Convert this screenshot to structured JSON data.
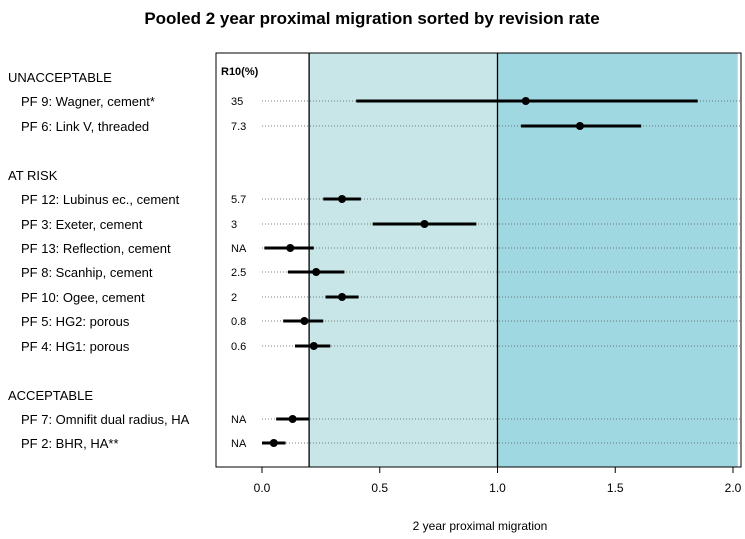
{
  "chart_data": {
    "type": "forest",
    "title": "Pooled 2 year proximal migration sorted by revision rate",
    "xlabel": "2 year proximal migration",
    "xlim": [
      -0.2,
      2.02
    ],
    "xticks": [
      "0.0",
      "0.5",
      "1.0",
      "1.5",
      "2.0"
    ],
    "xtick_values": [
      0,
      0.5,
      1.0,
      1.5,
      2.0
    ],
    "thresholds": [
      0.2,
      1.0
    ],
    "zones": [
      {
        "from": 0.2,
        "to": 1.0,
        "color": "#c8e6e8"
      },
      {
        "from": 1.0,
        "to": 2.02,
        "color": "#a0d8e2"
      }
    ],
    "column_header": "R10(%)",
    "groups": [
      {
        "label": "UNACCEPTABLE",
        "rows": [
          {
            "label": "PF   9: Wagner, cement*",
            "r10": "35",
            "estimate": 1.12,
            "lower": 0.4,
            "upper": 1.85
          },
          {
            "label": "PF   6: Link V, threaded",
            "r10": "7.3",
            "estimate": 1.35,
            "lower": 1.1,
            "upper": 1.61
          }
        ]
      },
      {
        "label": "AT RISK",
        "rows": [
          {
            "label": "PF 12: Lubinus ec., cement",
            "r10": "5.7",
            "estimate": 0.34,
            "lower": 0.26,
            "upper": 0.42
          },
          {
            "label": "PF   3: Exeter, cement",
            "r10": "3",
            "estimate": 0.69,
            "lower": 0.47,
            "upper": 0.91
          },
          {
            "label": "PF 13: Reflection, cement",
            "r10": "NA",
            "estimate": 0.12,
            "lower": 0.01,
            "upper": 0.22
          },
          {
            "label": "PF   8: Scanhip, cement",
            "r10": "2.5",
            "estimate": 0.23,
            "lower": 0.11,
            "upper": 0.35
          },
          {
            "label": "PF 10: Ogee, cement",
            "r10": "2",
            "estimate": 0.34,
            "lower": 0.27,
            "upper": 0.41
          },
          {
            "label": "PF   5: HG2: porous",
            "r10": "0.8",
            "estimate": 0.18,
            "lower": 0.09,
            "upper": 0.26
          },
          {
            "label": "PF   4: HG1: porous",
            "r10": "0.6",
            "estimate": 0.22,
            "lower": 0.14,
            "upper": 0.29
          }
        ]
      },
      {
        "label": "ACCEPTABLE",
        "rows": [
          {
            "label": "PF   7: Omnifit dual radius, HA",
            "r10": "NA",
            "estimate": 0.13,
            "lower": 0.06,
            "upper": 0.2
          },
          {
            "label": "PF   2: BHR, HA**",
            "r10": "NA",
            "estimate": 0.05,
            "lower": 0.0,
            "upper": 0.1
          }
        ]
      }
    ]
  }
}
